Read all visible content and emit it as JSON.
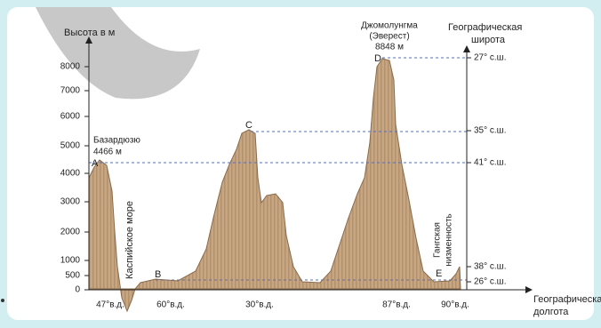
{
  "y_axis": {
    "title": "Высота в м",
    "ticks": [
      "8000",
      "7000",
      "6000",
      "5000",
      "4000",
      "3000",
      "2000",
      "1000",
      "500",
      "0"
    ]
  },
  "right_axis": {
    "title": [
      "Географическая",
      "широта"
    ],
    "ticks": [
      "27° с.ш.",
      "35° с.ш.",
      "41° с.ш.",
      "38° с.ш.",
      "26° с.ш."
    ]
  },
  "x_axis": {
    "title": [
      "Географическая",
      "долгота"
    ],
    "ticks": [
      "47°в.д.",
      "60°в.д.",
      "30°в.д.",
      "87°в.д.",
      "90°в.д."
    ]
  },
  "points": [
    {
      "letter": "A",
      "name": "Базардюзю",
      "height": "4466 м"
    },
    {
      "letter": "B"
    },
    {
      "letter": "C"
    },
    {
      "letter": "D",
      "name": "Джомолунгма",
      "alt": "(Эверест)",
      "height": "8848 м"
    },
    {
      "letter": "E"
    }
  ],
  "annotations": {
    "sea": "Каспийское море",
    "lowland": [
      "Гангская",
      "низменность"
    ]
  }
}
